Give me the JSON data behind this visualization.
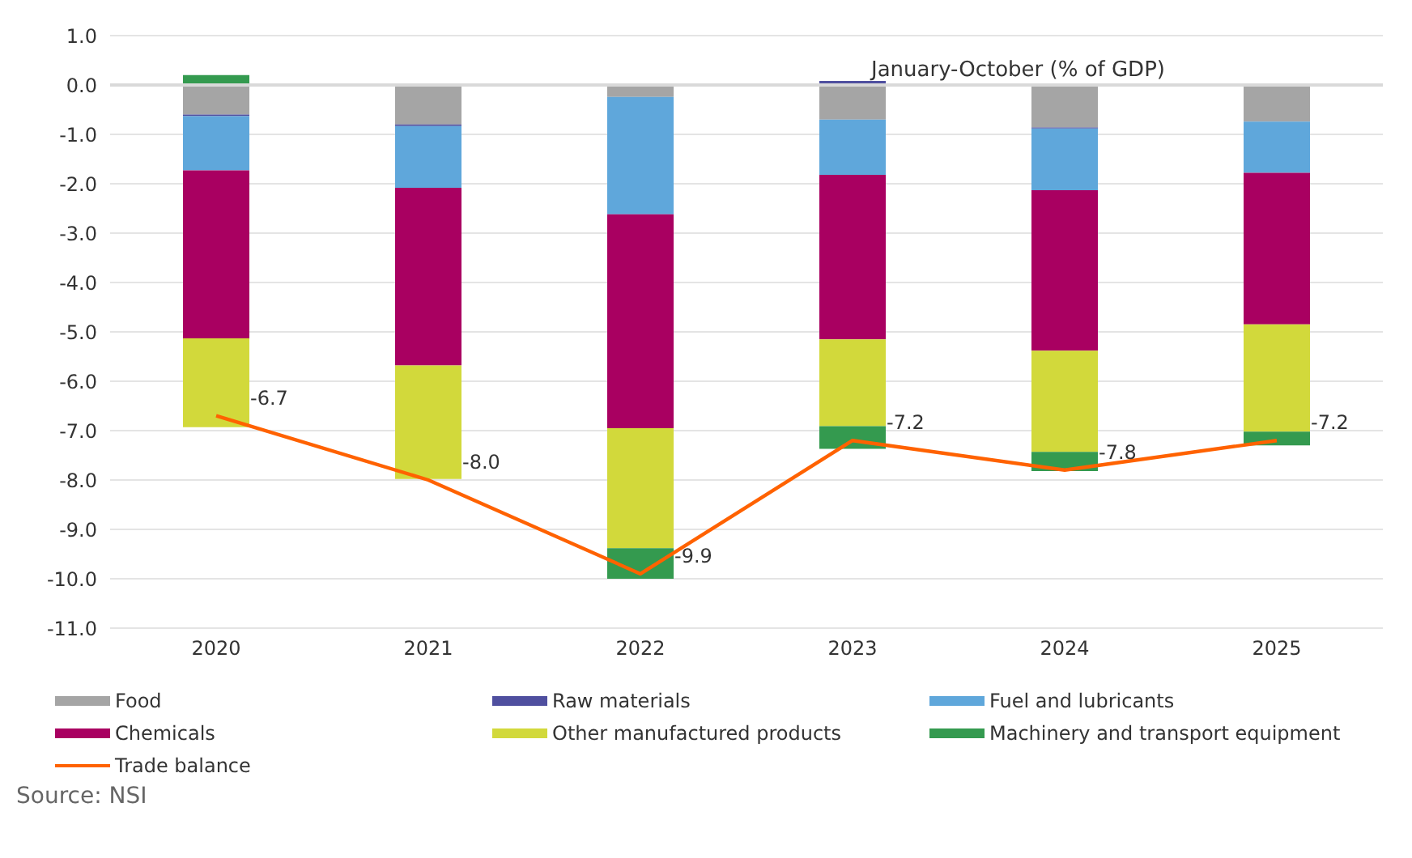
{
  "chart_data": {
    "type": "bar",
    "stacked": true,
    "title": "January-October (% of GDP)",
    "categories": [
      "2020",
      "2021",
      "2022",
      "2023",
      "2024",
      "2025"
    ],
    "series": [
      {
        "name": "Food",
        "color": "#a5a5a5",
        "values": [
          -0.6,
          -0.8,
          -0.24,
          -0.7,
          -0.86,
          -0.74
        ]
      },
      {
        "name": "Raw materials",
        "color": "#4f4f9f",
        "values": [
          -0.03,
          -0.03,
          0.03,
          0.08,
          -0.02,
          0.03
        ]
      },
      {
        "name": "Fuel and lubricants",
        "color": "#5fa7db",
        "values": [
          -1.1,
          -1.25,
          -2.38,
          -1.12,
          -1.25,
          -1.04
        ]
      },
      {
        "name": "Chemicals",
        "color": "#a90061",
        "values": [
          -3.4,
          -3.6,
          -4.33,
          -3.33,
          -3.25,
          -3.07
        ]
      },
      {
        "name": "Other manufactured products",
        "color": "#d2d93b",
        "values": [
          -1.8,
          -2.3,
          -2.43,
          -1.76,
          -2.05,
          -2.17
        ]
      },
      {
        "name": "Machinery and transport equipment",
        "color": "#349a4f",
        "values": [
          0.2,
          0,
          -0.62,
          -0.46,
          -0.39,
          -0.28
        ]
      },
      {
        "name": "Trade balance",
        "type": "line",
        "color": "#ff6200",
        "values": [
          -6.7,
          -8.0,
          -9.9,
          -7.2,
          -7.8,
          -7.2
        ],
        "value_labels": [
          "-6.7",
          "-8.0",
          "-9.9",
          "-7.2",
          "-7.8",
          "-7.2"
        ]
      }
    ],
    "ylim": [
      -11,
      1
    ],
    "yticks": [
      {
        "value": 1,
        "label": "1.0"
      },
      {
        "value": 0,
        "label": "0.0"
      },
      {
        "value": -1,
        "label": "-1.0"
      },
      {
        "value": -2,
        "label": "-2.0"
      },
      {
        "value": -3,
        "label": "-3.0"
      },
      {
        "value": -4,
        "label": "-4.0"
      },
      {
        "value": -5,
        "label": "-5.0"
      },
      {
        "value": -6,
        "label": "-6.0"
      },
      {
        "value": -7,
        "label": "-7.0"
      },
      {
        "value": -8,
        "label": "-8.0"
      },
      {
        "value": -9,
        "label": "-9.0"
      },
      {
        "value": -10,
        "label": "-10.0"
      },
      {
        "value": -11,
        "label": "-11.0"
      }
    ],
    "ref_lines": [
      {
        "axis": "y",
        "value": 0,
        "color": "#d9d9d9"
      }
    ],
    "grid": "y",
    "legend": "bottom",
    "marker": "none",
    "line_style": "solid",
    "annotations": [
      "Source: NSI"
    ]
  }
}
